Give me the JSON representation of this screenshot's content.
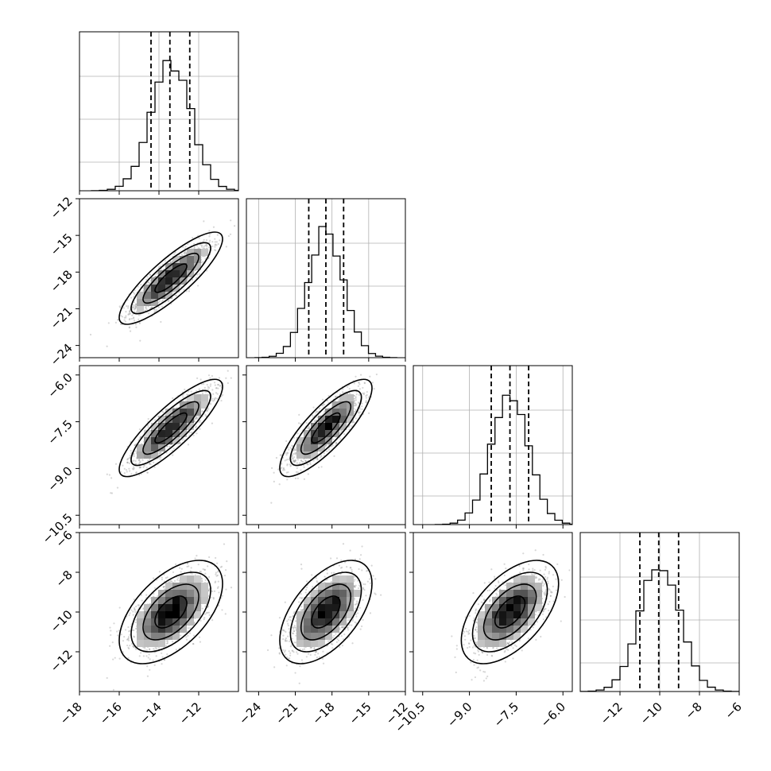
{
  "chart_data": {
    "type": "corner",
    "title": "",
    "grid": true,
    "parameters": [
      {
        "index": 0,
        "range": [
          -18,
          -10
        ],
        "ticks": [
          -18,
          -16,
          -14,
          -12
        ],
        "tick_labels": [
          "−18",
          "−16",
          "−14",
          "−12"
        ],
        "quantiles": [
          -14.4,
          -13.45,
          -12.45
        ],
        "hist_mean": -13.4,
        "hist_sd": 1.0
      },
      {
        "index": 1,
        "range": [
          -25,
          -12
        ],
        "ticks": [
          -24,
          -21,
          -18,
          -15,
          -12
        ],
        "tick_labels": [
          "−24",
          "−21",
          "−18",
          "−15",
          "−12"
        ],
        "quantiles": [
          -19.9,
          -18.5,
          -17.05
        ],
        "hist_mean": -18.5,
        "hist_sd": 1.45
      },
      {
        "index": 2,
        "range": [
          -10.8,
          -5.7
        ],
        "ticks": [
          -10.5,
          -9.0,
          -7.5,
          -6.0
        ],
        "tick_labels": [
          "−10.5",
          "−9.0",
          "−7.5",
          "−6.0"
        ],
        "quantiles": [
          -8.3,
          -7.7,
          -7.1
        ],
        "hist_mean": -7.7,
        "hist_sd": 0.6
      },
      {
        "index": 3,
        "range": [
          -14,
          -6
        ],
        "ticks": [
          -12,
          -10,
          -8,
          -6
        ],
        "tick_labels": [
          "−12",
          "−10",
          "−8",
          "−6"
        ],
        "quantiles": [
          -11.0,
          -10.05,
          -9.05
        ],
        "hist_mean": -10.0,
        "hist_sd": 1.0
      }
    ],
    "pairs": [
      {
        "row": 1,
        "col": 0,
        "center": [
          -13.4,
          -18.5
        ],
        "sd": [
          1.0,
          1.45
        ],
        "corr": 0.85
      },
      {
        "row": 2,
        "col": 0,
        "center": [
          -13.4,
          -7.7
        ],
        "sd": [
          1.0,
          0.6
        ],
        "corr": 0.85
      },
      {
        "row": 2,
        "col": 1,
        "center": [
          -18.5,
          -7.7
        ],
        "sd": [
          1.45,
          0.6
        ],
        "corr": 0.82
      },
      {
        "row": 3,
        "col": 0,
        "center": [
          -13.4,
          -10.0
        ],
        "sd": [
          1.0,
          1.0
        ],
        "corr": 0.55
      },
      {
        "row": 3,
        "col": 1,
        "center": [
          -18.5,
          -10.0
        ],
        "sd": [
          1.45,
          1.0
        ],
        "corr": 0.55
      },
      {
        "row": 3,
        "col": 2,
        "center": [
          -7.7,
          -10.0
        ],
        "sd": [
          0.6,
          1.0
        ],
        "corr": 0.55
      }
    ]
  }
}
